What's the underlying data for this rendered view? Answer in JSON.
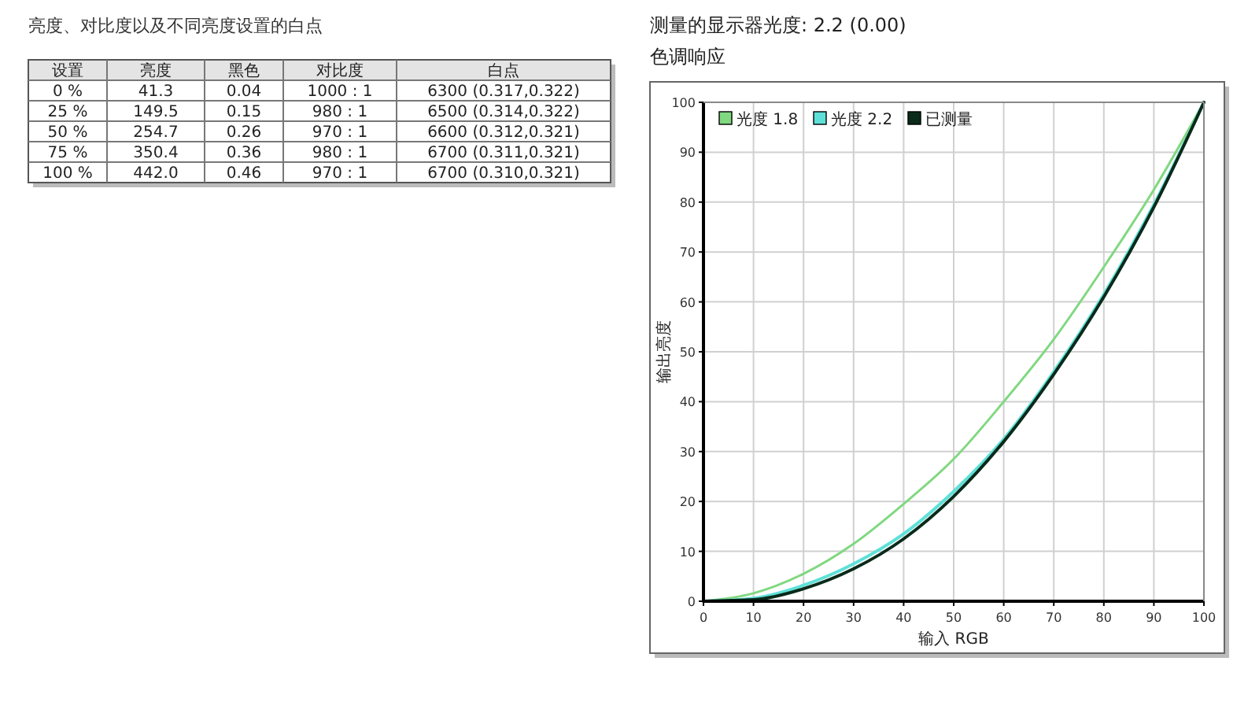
{
  "chart_data": [
    {
      "type": "heatmap",
      "title": "亮度、对比度以及不同亮度设置的白点",
      "ylabel": "设置",
      "categories": [
        "亮度",
        "黑色",
        "对比度",
        "白点"
      ],
      "y_categories": [
        "0 %",
        "25 %",
        "50 %",
        "75 %",
        "100 %"
      ],
      "cells": [
        [
          null,
          null,
          null,
          null
        ],
        [
          null,
          null,
          null,
          null
        ],
        [
          null,
          null,
          null,
          null
        ],
        [
          null,
          null,
          null,
          null
        ],
        [
          null,
          null,
          null,
          null
        ]
      ],
      "cell_labels": [
        [
          "41.3",
          "0.04",
          "1000 : 1",
          "6300 (0.317,0.322)"
        ],
        [
          "149.5",
          "0.15",
          "980 : 1",
          "6500 (0.314,0.322)"
        ],
        [
          "254.7",
          "0.26",
          "970 : 1",
          "6600 (0.312,0.321)"
        ],
        [
          "350.4",
          "0.36",
          "980 : 1",
          "6700 (0.311,0.321)"
        ],
        [
          "442.0",
          "0.46",
          "970 : 1",
          "6700 (0.310,0.321)"
        ]
      ]
    },
    {
      "type": "line",
      "title": "测量的显示器光度: 2.2 (0.00)",
      "subtitle": "色调响应",
      "xlabel": "输入 RGB",
      "ylabel": "输出亮度",
      "x": [
        0,
        10,
        20,
        30,
        40,
        50,
        60,
        70,
        80,
        90,
        100
      ],
      "series": [
        {
          "name": "光度 1.8",
          "color": "#80d880",
          "values": [
            0,
            1.6,
            5.5,
            11.5,
            19.5,
            28.5,
            40,
            52.5,
            67,
            82.5,
            100
          ]
        },
        {
          "name": "光度 2.2",
          "color": "#5ee0d8",
          "values": [
            0,
            0.6,
            3.2,
            7.5,
            13.5,
            22,
            32.5,
            46,
            61.5,
            79.5,
            100
          ]
        },
        {
          "name": "已测量",
          "color": "#0a2a1a",
          "values": [
            0,
            0.3,
            2.5,
            6.5,
            12.5,
            21,
            32,
            45.5,
            61,
            79,
            100
          ]
        }
      ],
      "xlim": [
        0,
        100
      ],
      "ylim": [
        0,
        100
      ],
      "xticks": [
        0,
        10,
        20,
        30,
        40,
        50,
        60,
        70,
        80,
        90,
        100
      ],
      "yticks": [
        0,
        10,
        20,
        30,
        40,
        50,
        60,
        70,
        80,
        90,
        100
      ],
      "grid": true,
      "legend": "top left",
      "marker": "none",
      "line_style": "solid"
    }
  ]
}
